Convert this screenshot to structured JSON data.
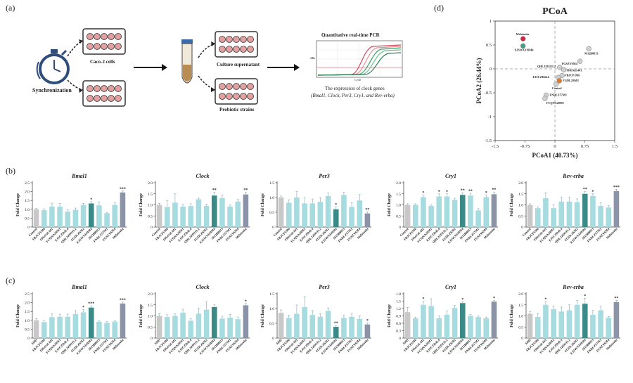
{
  "panel_labels": {
    "a": "(a)",
    "b": "(b)",
    "c": "(c)",
    "d": "(d)"
  },
  "schematic": {
    "step1": "Synchronization",
    "cells": "Caco-2 cells",
    "supernatant": "Culture supernatant",
    "strains": "Probiotic strains",
    "qpcr_title": "Quantitative real-time PCR",
    "qpcr_x": "Cycle",
    "qpcr_y": "ΔRn",
    "caption1": "The expression of clock genes",
    "caption2": "(Bmal1, Clock, Per3, Cry1, and Rev-erba)"
  },
  "colors": {
    "control": "#c8c8c8",
    "strain": "#a6dbe0",
    "sig": "#3c8a88",
    "mel": "#8b93a8",
    "mel_dot": "#d6233f",
    "ejs_dot": "#3f9f7a",
    "fgd_dot": "#e07a2f",
    "grey_dot": "#cfcfcf"
  },
  "chart_data": [
    {
      "id": "b-bmal1",
      "type": "bar",
      "title": "Bmal1",
      "ylabel": "Fold Change",
      "ylim": [
        0,
        2.5
      ],
      "yticks": [
        "0",
        "0.5",
        "1.0",
        "1.5",
        "2.0",
        "2.5"
      ],
      "categories": [
        "Control",
        "FBJCP1M6",
        "FHeNaL441",
        "FCQNA20M1",
        "EJSCZD4L4",
        "QHLJZD21L2",
        "FGDLZ6M2",
        "EJSWX319M4",
        "M12B8013",
        "FNDLZ57M1",
        "FGSZY6M4",
        "Melatonin"
      ],
      "values": [
        1.0,
        0.95,
        1.15,
        1.15,
        0.87,
        0.97,
        1.25,
        1.33,
        1.22,
        0.78,
        1.25,
        1.95
      ],
      "errors": [
        0.05,
        0.08,
        0.2,
        0.18,
        0.1,
        0.1,
        0.08,
        0.1,
        0.2,
        0.05,
        0.12,
        0.08
      ],
      "sig": [
        "",
        "",
        "",
        "",
        "",
        "",
        "",
        "*",
        "",
        "",
        "",
        "***"
      ]
    },
    {
      "id": "b-clock",
      "type": "bar",
      "title": "Clock",
      "ylabel": "Fold Change",
      "ylim": [
        0,
        2.0
      ],
      "yticks": [
        "0",
        "0.5",
        "1.0",
        "1.5",
        "2.0"
      ],
      "categories": [
        "Control",
        "FBJCP1M6",
        "FHeNaL441",
        "FCQNA20M1",
        "EJSCZD4L4",
        "QHLJZD21L2",
        "FGDLZ6M2",
        "EJSWX319M4",
        "M12B8013",
        "FNDLZ57M1",
        "FGSZY6M4",
        "Melatonin"
      ],
      "values": [
        1.0,
        0.9,
        1.1,
        0.92,
        0.95,
        1.25,
        0.95,
        1.42,
        1.3,
        0.92,
        1.15,
        1.47
      ],
      "errors": [
        0.07,
        0.3,
        0.4,
        0.1,
        0.1,
        0.05,
        0.08,
        0.15,
        0.15,
        0.08,
        0.1,
        0.1
      ],
      "sig": [
        "",
        "",
        "",
        "",
        "",
        "",
        "",
        "**",
        "",
        "",
        "",
        "**"
      ]
    },
    {
      "id": "b-per3",
      "type": "bar",
      "title": "Per3",
      "ylabel": "Fold Change",
      "ylim": [
        0,
        1.5
      ],
      "yticks": [
        "0",
        "0.5",
        "1.0",
        "1.5"
      ],
      "categories": [
        "Control",
        "FBJCP1M6",
        "FHeNaL441",
        "FCQNA20M1",
        "EJSCZD4L4",
        "QHLJZD21L2",
        "FGDLZ6M2",
        "EJSWX319M4",
        "M12B8013",
        "FNDLZ57M1",
        "FGSZY6M4",
        "Melatonin"
      ],
      "values": [
        1.0,
        0.82,
        1.0,
        0.8,
        0.8,
        0.85,
        1.05,
        0.6,
        1.08,
        0.68,
        0.9,
        0.46
      ],
      "errors": [
        0.05,
        0.1,
        0.2,
        0.2,
        0.15,
        0.15,
        0.1,
        0.08,
        0.1,
        0.15,
        0.2,
        0.05
      ],
      "sig": [
        "",
        "",
        "",
        "",
        "",
        "",
        "",
        "*",
        "",
        "",
        "",
        "**"
      ]
    },
    {
      "id": "b-cry1",
      "type": "bar",
      "title": "Cry1",
      "ylabel": "Fold Change",
      "ylim": [
        0,
        2.0
      ],
      "yticks": [
        "0",
        "0.5",
        "1.0",
        "1.5",
        "2.0"
      ],
      "categories": [
        "Control",
        "FBJCP1M6",
        "FHeNaL441",
        "FCQNA20M1",
        "EJSCZD4L4",
        "QHLJZD21L2",
        "FGDLZ6M2",
        "EJSWX319M4",
        "M12B8013",
        "FNDLZ57M1",
        "FGSZY6M4",
        "Melatonin"
      ],
      "values": [
        1.0,
        1.0,
        1.35,
        0.95,
        1.38,
        1.38,
        1.22,
        1.45,
        1.42,
        0.75,
        1.35,
        1.48
      ],
      "errors": [
        0.05,
        0.05,
        0.1,
        0.05,
        0.12,
        0.12,
        0.08,
        0.1,
        0.1,
        0.08,
        0.1,
        0.1
      ],
      "sig": [
        "",
        "",
        "*",
        "",
        "*",
        "*",
        "",
        "**",
        "**",
        "",
        "*",
        "**"
      ]
    },
    {
      "id": "b-reverba",
      "type": "bar",
      "title": "Rev-erba",
      "ylabel": "Fold Change",
      "ylim": [
        0,
        2.0
      ],
      "yticks": [
        "0",
        "0.5",
        "1.0",
        "1.5",
        "2.0"
      ],
      "categories": [
        "Control",
        "FBJCP1M6",
        "FHeNaL441",
        "FCQNA20M1",
        "EJSCZD4L4",
        "QHLJZD21L2",
        "FGDLZ6M2",
        "EJSWX319M4",
        "M12B8013",
        "FNDLZ57M1",
        "FGSZY6M4",
        "Melatonin"
      ],
      "values": [
        1.0,
        0.85,
        1.3,
        0.85,
        1.15,
        1.15,
        1.12,
        1.5,
        1.4,
        0.95,
        0.88,
        1.62
      ],
      "errors": [
        0.05,
        0.05,
        0.25,
        0.15,
        0.2,
        0.2,
        0.15,
        0.1,
        0.1,
        0.15,
        0.08,
        0.08
      ],
      "sig": [
        "",
        "",
        "",
        "",
        "",
        "",
        "",
        "**",
        "*",
        "",
        "",
        "***"
      ]
    },
    {
      "id": "c-bmal1",
      "type": "bar",
      "title": "Bmal1",
      "ylabel": "Fold Change",
      "ylim": [
        0,
        2.5
      ],
      "yticks": [
        "0",
        "0.5",
        "1.0",
        "1.5",
        "2.0",
        "2.5"
      ],
      "categories": [
        "SHD",
        "FBJCP1M6",
        "FHeNaL441",
        "FCQNA20M1",
        "EJSCZD4L4",
        "QHLJZD21L2",
        "FGDLZ6M2",
        "EJSWX319M4",
        "M12B8013",
        "FNDLZ57M1",
        "FGSZY6M4",
        "Melatonin"
      ],
      "values": [
        1.0,
        0.9,
        1.18,
        1.2,
        1.2,
        1.35,
        1.45,
        1.72,
        0.92,
        0.85,
        0.93,
        1.95
      ],
      "errors": [
        0.1,
        0.1,
        0.2,
        0.15,
        0.15,
        0.2,
        0.15,
        0.1,
        0.05,
        0.08,
        0.05,
        0.08
      ],
      "sig": [
        "",
        "",
        "",
        "",
        "",
        "",
        "*",
        "***",
        "",
        "",
        "",
        "***"
      ]
    },
    {
      "id": "c-clock",
      "type": "bar",
      "title": "Clock",
      "ylabel": "Fold Change",
      "ylim": [
        0,
        2.0
      ],
      "yticks": [
        "0",
        "0.5",
        "1.0",
        "1.5",
        "2.0"
      ],
      "categories": [
        "SHD",
        "FBJCP1M6",
        "FHeNaL441",
        "FCQNA20M1",
        "EJSCZD4L4",
        "QHLJZD21L2",
        "FGDLZ6M2",
        "EJSWX319M4",
        "M12B8013",
        "FNDLZ57M1",
        "FGSZY6M4",
        "Melatonin"
      ],
      "values": [
        1.0,
        0.95,
        1.0,
        1.15,
        0.78,
        1.1,
        1.28,
        1.4,
        0.88,
        0.92,
        0.85,
        1.48
      ],
      "errors": [
        0.1,
        0.1,
        0.1,
        0.15,
        0.1,
        0.25,
        0.35,
        0.1,
        0.1,
        0.15,
        0.1,
        0.08
      ],
      "sig": [
        "",
        "",
        "",
        "",
        "",
        "",
        "",
        "",
        "",
        "",
        "",
        "*"
      ]
    },
    {
      "id": "c-per3",
      "type": "bar",
      "title": "Per3",
      "ylabel": "Fold Change",
      "ylim": [
        0,
        1.5
      ],
      "yticks": [
        "0",
        "0.5",
        "1.0",
        "1.5"
      ],
      "categories": [
        "SHD",
        "FBJCP1M6",
        "FHeNaL441",
        "FCQNA20M1",
        "EJSCZD4L4",
        "QHLJZD21L2",
        "FGDLZ6M2",
        "EJSWX319M4",
        "M12B8013",
        "FNDLZ57M1",
        "FGSZY6M4",
        "Melatonin"
      ],
      "values": [
        0.85,
        0.68,
        0.82,
        1.05,
        0.78,
        0.72,
        0.92,
        0.38,
        0.68,
        0.72,
        0.65,
        0.46
      ],
      "errors": [
        0.1,
        0.1,
        0.3,
        0.35,
        0.15,
        0.1,
        0.1,
        0.05,
        0.1,
        0.12,
        0.1,
        0.05
      ],
      "sig": [
        "",
        "",
        "",
        "",
        "",
        "",
        "",
        "**",
        "",
        "",
        "",
        "*"
      ]
    },
    {
      "id": "c-cry1",
      "type": "bar",
      "title": "Cry1",
      "ylabel": "Fold Change",
      "ylim": [
        0,
        1.8
      ],
      "yticks": [
        "0",
        "0.3",
        "0.6",
        "0.9",
        "1.2",
        "1.5",
        "1.8"
      ],
      "categories": [
        "SHD",
        "FBJCP1M6",
        "FHeNaL441",
        "FCQNA20M1",
        "EJSCZD4L4",
        "QHLJZD21L2",
        "FGDLZ6M2",
        "EJSWX319M4",
        "M12B8013",
        "FNDLZ57M1",
        "FGSZY6M4",
        "Melatonin"
      ],
      "values": [
        1.05,
        0.8,
        1.35,
        1.3,
        0.8,
        0.95,
        1.22,
        1.42,
        0.9,
        0.85,
        0.8,
        1.48
      ],
      "errors": [
        0.2,
        0.05,
        0.15,
        0.3,
        0.1,
        0.15,
        0.1,
        0.05,
        0.05,
        0.05,
        0.05,
        0.05
      ],
      "sig": [
        "",
        "",
        "*",
        "",
        "",
        "",
        "",
        "*",
        "",
        "",
        "",
        "*"
      ]
    },
    {
      "id": "c-reverba",
      "type": "bar",
      "title": "Rev-erba",
      "ylabel": "Fold Change",
      "ylim": [
        0,
        2.0
      ],
      "yticks": [
        "0",
        "0.5",
        "1.0",
        "1.5",
        "2.0"
      ],
      "categories": [
        "SHD",
        "FBJCP1M6",
        "FHeNaL441",
        "FCQNA20M1",
        "EJSCZD4L4",
        "QHLJZD21L2",
        "FGDLZ6M2",
        "EJSWX319M4",
        "M12B8013",
        "FNDLZ57M1",
        "FGSZY6M4",
        "Melatonin"
      ],
      "values": [
        1.1,
        0.95,
        1.5,
        1.3,
        1.2,
        1.25,
        1.5,
        1.55,
        1.05,
        1.25,
        0.92,
        1.62
      ],
      "errors": [
        0.1,
        0.15,
        0.15,
        0.15,
        0.2,
        0.25,
        0.2,
        0.25,
        0.2,
        0.2,
        0.05,
        0.08
      ],
      "sig": [
        "",
        "",
        "*",
        "",
        "",
        "",
        "",
        "*",
        "",
        "",
        "",
        "**"
      ]
    },
    {
      "id": "d-pcoa",
      "type": "scatter",
      "title": "PCoA",
      "xlabel": "PCoA1 (40.73%)",
      "ylabel": "PCoA2 (26.44%)",
      "xlim": [
        -1.5,
        1.5
      ],
      "ylim": [
        -1.5,
        1.0
      ],
      "xticks": [
        "-1.5",
        "-0.75",
        "0",
        "0.75",
        "1.5"
      ],
      "yticks": [
        "1",
        "0.5",
        "0",
        "-0.5",
        "-1",
        "-1.5"
      ],
      "points": [
        {
          "label": "Melatonin",
          "x": -0.8,
          "y": 0.63,
          "kind": "mel"
        },
        {
          "label": "EJSWX319M4",
          "x": -0.8,
          "y": 0.48,
          "kind": "ejs"
        },
        {
          "label": "M12B8013",
          "x": 0.85,
          "y": 0.42,
          "kind": "grey"
        },
        {
          "label": "FGSZY6M4",
          "x": 0.63,
          "y": 0.16,
          "kind": "grey"
        },
        {
          "label": "QHLJZD21L2",
          "x": 0.12,
          "y": 0.03,
          "kind": "grey"
        },
        {
          "label": "FHeNaL441",
          "x": 0.22,
          "y": -0.02,
          "kind": "grey"
        },
        {
          "label": "FBJCP1M6",
          "x": 0.18,
          "y": -0.14,
          "kind": "grey"
        },
        {
          "label": "EJSCZD4L4",
          "x": 0.08,
          "y": -0.18,
          "kind": "grey"
        },
        {
          "label": "FGDLZ6M2",
          "x": 0.11,
          "y": -0.25,
          "kind": "fgd"
        },
        {
          "label": "Control",
          "x": 0.03,
          "y": -0.32,
          "kind": "grey"
        },
        {
          "label": "FNDLZ57M1",
          "x": -0.22,
          "y": -0.55,
          "kind": "grey"
        },
        {
          "label": "FCQNA20M1",
          "x": -0.25,
          "y": -0.62,
          "kind": "grey"
        }
      ]
    }
  ]
}
